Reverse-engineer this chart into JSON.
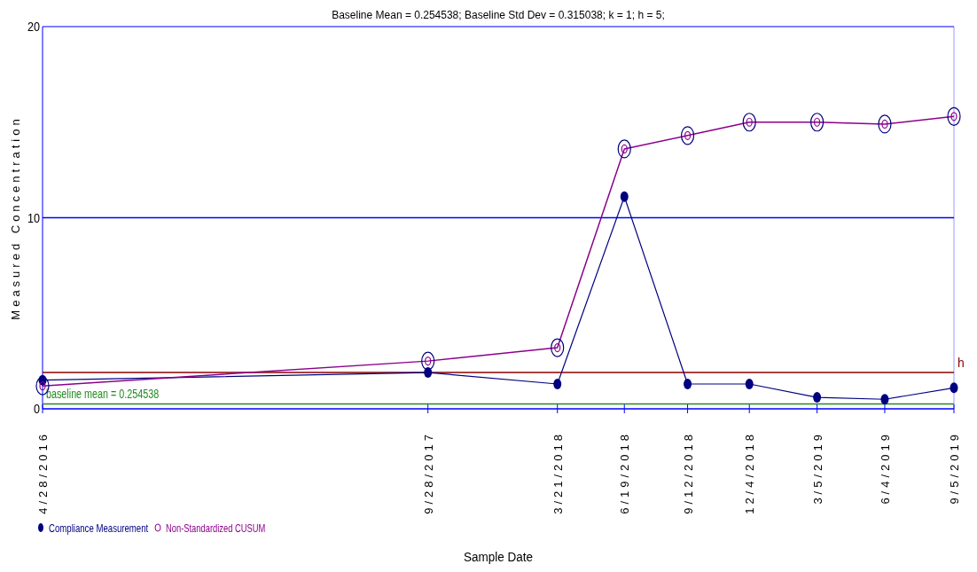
{
  "chart_data": {
    "type": "line",
    "title": "Baseline Mean = 0.254538; Baseline Std Dev = 0.315038; k = 1; h = 5;",
    "xlabel": "Sample Date",
    "ylabel": "Measured Concentration",
    "x": [
      "2016-04-28",
      "2017-09-28",
      "2018-03-21",
      "2018-06-19",
      "2018-09-12",
      "2018-12-04",
      "2019-03-05",
      "2019-06-04",
      "2019-09-05"
    ],
    "series": [
      {
        "name": "Compliance Measurement",
        "color": "#000080",
        "values": [
          1.5,
          1.9,
          1.3,
          11.1,
          1.3,
          1.3,
          0.6,
          0.5,
          1.1
        ]
      },
      {
        "name": "Non-Standardized CUSUM",
        "color": "#8b008b",
        "values": [
          1.2,
          2.5,
          3.2,
          13.6,
          14.3,
          15.0,
          15.0,
          14.9,
          15.3
        ]
      }
    ],
    "xlim": [
      "2016-04-28",
      "2019-09-05"
    ],
    "xticks": [
      {
        "value": "2016-04-28",
        "label": "4/28/2016"
      },
      {
        "value": "2017-09-28",
        "label": "9/28/2017"
      },
      {
        "value": "2018-03-21",
        "label": "3/21/2018"
      },
      {
        "value": "2018-06-19",
        "label": "6/19/2018"
      },
      {
        "value": "2018-09-12",
        "label": "9/12/2018"
      },
      {
        "value": "2018-12-04",
        "label": "12/4/2018"
      },
      {
        "value": "2019-03-05",
        "label": "3/5/2019"
      },
      {
        "value": "2019-06-04",
        "label": "6/4/2019"
      },
      {
        "value": "2019-09-05",
        "label": "9/5/2019"
      }
    ],
    "ylim": [
      0,
      20
    ],
    "yticks": [
      0,
      10,
      20
    ],
    "legend": "bottom left",
    "marker": "circle",
    "line_style": "solid",
    "ref_lines": [
      {
        "axis": "y",
        "value": 10,
        "color": "#0000ff"
      },
      {
        "axis": "y",
        "value": 1.9,
        "label": "h",
        "color": "#8b0000"
      },
      {
        "axis": "y",
        "value": 0.254538,
        "label": "baseline mean = 0.254538",
        "color": "#228b22"
      }
    ]
  }
}
